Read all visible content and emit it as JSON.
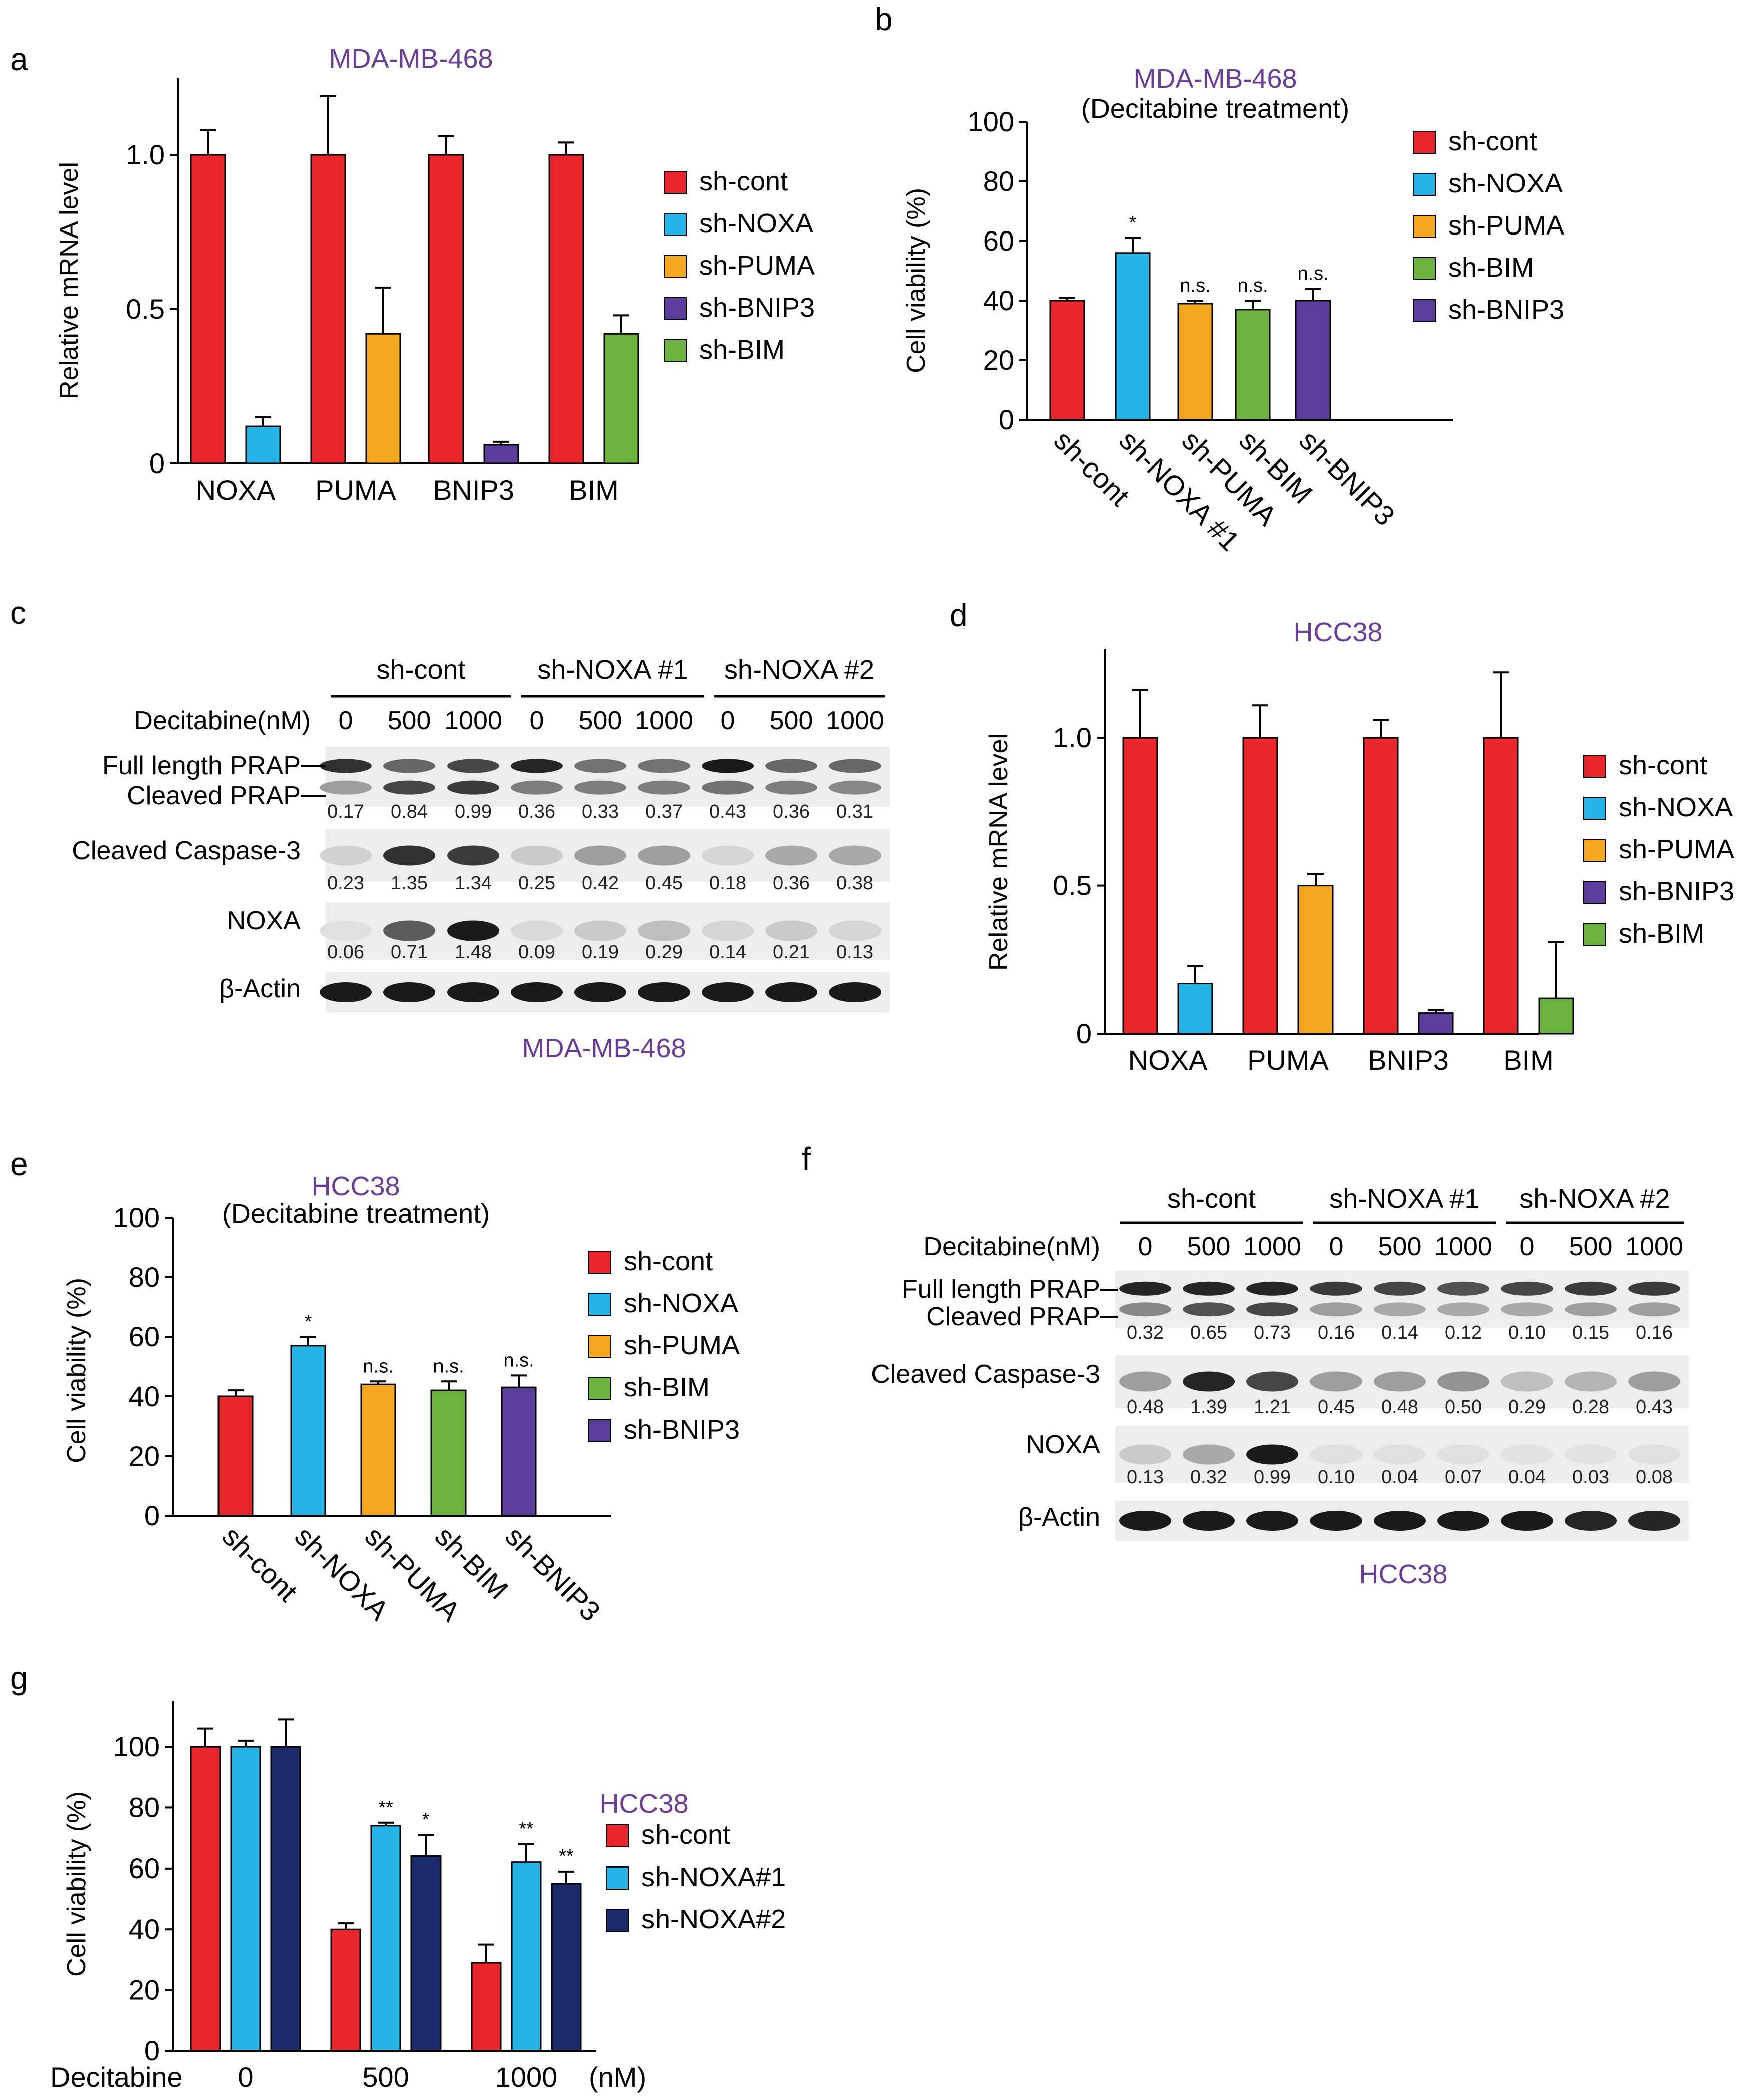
{
  "chart_data": [
    {
      "id": "a",
      "type": "bar",
      "panel_label": "a",
      "title": "MDA-MB-468",
      "subtitle": "",
      "ylabel": "Relative mRNA level",
      "ylim": [
        0,
        1.25
      ],
      "yticks": [
        0,
        0.5,
        1.0
      ],
      "ytick_labels": [
        "0",
        "0.5",
        "1.0"
      ],
      "categories": [
        "NOXA",
        "PUMA",
        "BNIP3",
        "BIM"
      ],
      "legend": [
        "sh-cont",
        "sh-NOXA",
        "sh-PUMA",
        "sh-BNIP3",
        "sh-BIM"
      ],
      "colors": [
        "#e8262b",
        "#25b4e8",
        "#f5a81f",
        "#5b3d9c",
        "#6cb43e"
      ],
      "bars": [
        {
          "cat": 0,
          "legend": 0,
          "value": 1.0,
          "err": 0.08
        },
        {
          "cat": 0,
          "legend": 1,
          "value": 0.12,
          "err": 0.03
        },
        {
          "cat": 1,
          "legend": 0,
          "value": 1.0,
          "err": 0.19
        },
        {
          "cat": 1,
          "legend": 2,
          "value": 0.42,
          "err": 0.15
        },
        {
          "cat": 2,
          "legend": 0,
          "value": 1.0,
          "err": 0.06
        },
        {
          "cat": 2,
          "legend": 3,
          "value": 0.06,
          "err": 0.01
        },
        {
          "cat": 3,
          "legend": 0,
          "value": 1.0,
          "err": 0.04
        },
        {
          "cat": 3,
          "legend": 4,
          "value": 0.42,
          "err": 0.06
        }
      ]
    },
    {
      "id": "b",
      "type": "bar",
      "panel_label": "b",
      "title": "MDA-MB-468",
      "subtitle": "(Decitabine treatment)",
      "ylabel": "Cell viability (%)",
      "ylim": [
        0,
        100
      ],
      "yticks": [
        0,
        20,
        40,
        60,
        80,
        100
      ],
      "ytick_labels": [
        "0",
        "20",
        "40",
        "60",
        "80",
        "100"
      ],
      "categories": [
        "sh-cont",
        "sh-NOXA #1",
        "sh-PUMA",
        "sh-BIM",
        "sh-BNIP3"
      ],
      "legend": [
        "sh-cont",
        "sh-NOXA",
        "sh-PUMA",
        "sh-BIM",
        "sh-BNIP3"
      ],
      "colors": [
        "#e8262b",
        "#25b4e8",
        "#f5a81f",
        "#6cb43e",
        "#5b3d9c"
      ],
      "bars": [
        {
          "cat": 0,
          "legend": 0,
          "value": 40,
          "err": 1,
          "sig": ""
        },
        {
          "cat": 1,
          "legend": 1,
          "value": 56,
          "err": 5,
          "sig": "*"
        },
        {
          "cat": 2,
          "legend": 2,
          "value": 39,
          "err": 1,
          "sig": "n.s."
        },
        {
          "cat": 3,
          "legend": 3,
          "value": 37,
          "err": 3,
          "sig": "n.s."
        },
        {
          "cat": 4,
          "legend": 4,
          "value": 40,
          "err": 4,
          "sig": "n.s."
        }
      ]
    },
    {
      "id": "d",
      "type": "bar",
      "panel_label": "d",
      "title": "HCC38",
      "subtitle": "",
      "ylabel": "Relative mRNA level",
      "ylim": [
        0,
        1.3
      ],
      "yticks": [
        0,
        0.5,
        1.0
      ],
      "ytick_labels": [
        "0",
        "0.5",
        "1.0"
      ],
      "categories": [
        "NOXA",
        "PUMA",
        "BNIP3",
        "BIM"
      ],
      "legend": [
        "sh-cont",
        "sh-NOXA",
        "sh-PUMA",
        "sh-BNIP3",
        "sh-BIM"
      ],
      "colors": [
        "#e8262b",
        "#25b4e8",
        "#f5a81f",
        "#5b3d9c",
        "#6cb43e"
      ],
      "bars": [
        {
          "cat": 0,
          "legend": 0,
          "value": 1.0,
          "err": 0.16
        },
        {
          "cat": 0,
          "legend": 1,
          "value": 0.17,
          "err": 0.06
        },
        {
          "cat": 1,
          "legend": 0,
          "value": 1.0,
          "err": 0.11
        },
        {
          "cat": 1,
          "legend": 2,
          "value": 0.5,
          "err": 0.04
        },
        {
          "cat": 2,
          "legend": 0,
          "value": 1.0,
          "err": 0.06
        },
        {
          "cat": 2,
          "legend": 3,
          "value": 0.07,
          "err": 0.01
        },
        {
          "cat": 3,
          "legend": 0,
          "value": 1.0,
          "err": 0.22
        },
        {
          "cat": 3,
          "legend": 4,
          "value": 0.12,
          "err": 0.19
        }
      ]
    },
    {
      "id": "e",
      "type": "bar",
      "panel_label": "e",
      "title": "HCC38",
      "subtitle": "(Decitabine treatment)",
      "ylabel": "Cell viability (%)",
      "ylim": [
        0,
        100
      ],
      "yticks": [
        0,
        20,
        40,
        60,
        80,
        100
      ],
      "ytick_labels": [
        "0",
        "20",
        "40",
        "60",
        "80",
        "100"
      ],
      "categories": [
        "sh-cont",
        "sh-NOXA",
        "sh-PUMA",
        "sh-BIM",
        "sh-BNIP3"
      ],
      "legend": [
        "sh-cont",
        "sh-NOXA",
        "sh-PUMA",
        "sh-BIM",
        "sh-BNIP3"
      ],
      "colors": [
        "#e8262b",
        "#25b4e8",
        "#f5a81f",
        "#6cb43e",
        "#5b3d9c"
      ],
      "bars": [
        {
          "cat": 0,
          "legend": 0,
          "value": 40,
          "err": 2,
          "sig": ""
        },
        {
          "cat": 1,
          "legend": 1,
          "value": 57,
          "err": 3,
          "sig": "*"
        },
        {
          "cat": 2,
          "legend": 2,
          "value": 44,
          "err": 1,
          "sig": "n.s."
        },
        {
          "cat": 3,
          "legend": 3,
          "value": 42,
          "err": 3,
          "sig": "n.s."
        },
        {
          "cat": 4,
          "legend": 4,
          "value": 43,
          "err": 4,
          "sig": "n.s."
        }
      ]
    },
    {
      "id": "g",
      "type": "bar",
      "panel_label": "g",
      "title": "HCC38",
      "subtitle": "",
      "ylabel": "Cell viability (%)",
      "ylim": [
        0,
        115
      ],
      "yticks": [
        0,
        20,
        40,
        60,
        80,
        100
      ],
      "ytick_labels": [
        "0",
        "20",
        "40",
        "60",
        "80",
        "100"
      ],
      "xlabel": "Decitabine",
      "unit": "(nM)",
      "categories": [
        "0",
        "500",
        "1000"
      ],
      "legend": [
        "sh-cont",
        "sh-NOXA#1",
        "sh-NOXA#2"
      ],
      "colors": [
        "#e8262b",
        "#25b4e8",
        "#1b2a6b"
      ],
      "bars": [
        {
          "cat": 0,
          "legend": 0,
          "value": 100,
          "err": 6,
          "sig": ""
        },
        {
          "cat": 0,
          "legend": 1,
          "value": 100,
          "err": 2,
          "sig": ""
        },
        {
          "cat": 0,
          "legend": 2,
          "value": 100,
          "err": 9,
          "sig": ""
        },
        {
          "cat": 1,
          "legend": 0,
          "value": 40,
          "err": 2,
          "sig": ""
        },
        {
          "cat": 1,
          "legend": 1,
          "value": 74,
          "err": 1,
          "sig": "**"
        },
        {
          "cat": 1,
          "legend": 2,
          "value": 64,
          "err": 7,
          "sig": "*"
        },
        {
          "cat": 2,
          "legend": 0,
          "value": 29,
          "err": 6,
          "sig": ""
        },
        {
          "cat": 2,
          "legend": 1,
          "value": 62,
          "err": 6,
          "sig": "**"
        },
        {
          "cat": 2,
          "legend": 2,
          "value": 55,
          "err": 4,
          "sig": "**"
        }
      ]
    }
  ],
  "blots": [
    {
      "id": "c",
      "panel_label": "c",
      "cell_line": "MDA-MB-468",
      "groups": [
        "sh-cont",
        "sh-NOXA #1",
        "sh-NOXA #2"
      ],
      "dose_label": "Decitabine(nM)",
      "doses": [
        "0",
        "500",
        "1000",
        "0",
        "500",
        "1000",
        "0",
        "500",
        "1000"
      ],
      "rows": [
        {
          "labels": [
            "Full length PRAP",
            "Cleaved PRAP"
          ],
          "quant": [
            "0.17",
            "0.84",
            "0.99",
            "0.36",
            "0.33",
            "0.37",
            "0.43",
            "0.36",
            "0.31"
          ],
          "band1": [
            0.85,
            0.6,
            0.75,
            0.9,
            0.55,
            0.55,
            0.95,
            0.6,
            0.6
          ],
          "band2": [
            0.35,
            0.75,
            0.8,
            0.5,
            0.5,
            0.5,
            0.55,
            0.5,
            0.45
          ]
        },
        {
          "labels": [
            "Cleaved Caspase-3"
          ],
          "quant": [
            "0.23",
            "1.35",
            "1.34",
            "0.25",
            "0.42",
            "0.45",
            "0.18",
            "0.36",
            "0.38"
          ],
          "band1": [
            0.12,
            0.85,
            0.8,
            0.15,
            0.35,
            0.35,
            0.1,
            0.3,
            0.3
          ]
        },
        {
          "labels": [
            "NOXA"
          ],
          "quant": [
            "0.06",
            "0.71",
            "1.48",
            "0.09",
            "0.19",
            "0.29",
            "0.14",
            "0.21",
            "0.13"
          ],
          "band1": [
            0.05,
            0.65,
            0.95,
            0.08,
            0.15,
            0.2,
            0.1,
            0.15,
            0.1
          ]
        },
        {
          "labels": [
            "β-Actin"
          ],
          "quant": [],
          "band1": [
            0.95,
            0.95,
            0.95,
            0.95,
            0.95,
            0.95,
            0.95,
            0.95,
            0.95
          ]
        }
      ]
    },
    {
      "id": "f",
      "panel_label": "f",
      "cell_line": "HCC38",
      "groups": [
        "sh-cont",
        "sh-NOXA #1",
        "sh-NOXA #2"
      ],
      "dose_label": "Decitabine(nM)",
      "doses": [
        "0",
        "500",
        "1000",
        "0",
        "500",
        "1000",
        "0",
        "500",
        "1000"
      ],
      "rows": [
        {
          "labels": [
            "Full length PRAP",
            "Cleaved PRAP"
          ],
          "quant": [
            "0.32",
            "0.65",
            "0.73",
            "0.16",
            "0.14",
            "0.12",
            "0.10",
            "0.15",
            "0.16"
          ],
          "band1": [
            0.9,
            0.9,
            0.9,
            0.8,
            0.75,
            0.7,
            0.75,
            0.8,
            0.8
          ],
          "band2": [
            0.45,
            0.7,
            0.75,
            0.35,
            0.3,
            0.3,
            0.3,
            0.35,
            0.35
          ]
        },
        {
          "labels": [
            "Cleaved Caspase-3"
          ],
          "quant": [
            "0.48",
            "1.39",
            "1.21",
            "0.45",
            "0.48",
            "0.50",
            "0.29",
            "0.28",
            "0.43"
          ],
          "band1": [
            0.35,
            0.9,
            0.75,
            0.35,
            0.35,
            0.4,
            0.2,
            0.25,
            0.35
          ]
        },
        {
          "labels": [
            "NOXA"
          ],
          "quant": [
            "0.13",
            "0.32",
            "0.99",
            "0.10",
            "0.04",
            "0.07",
            "0.04",
            "0.03",
            "0.08"
          ],
          "band1": [
            0.15,
            0.3,
            0.95,
            0.05,
            0.05,
            0.05,
            0.04,
            0.04,
            0.05
          ]
        },
        {
          "labels": [
            "β-Actin"
          ],
          "quant": [],
          "band1": [
            0.95,
            0.95,
            0.95,
            0.95,
            0.95,
            0.95,
            0.95,
            0.9,
            0.9
          ]
        }
      ]
    }
  ]
}
